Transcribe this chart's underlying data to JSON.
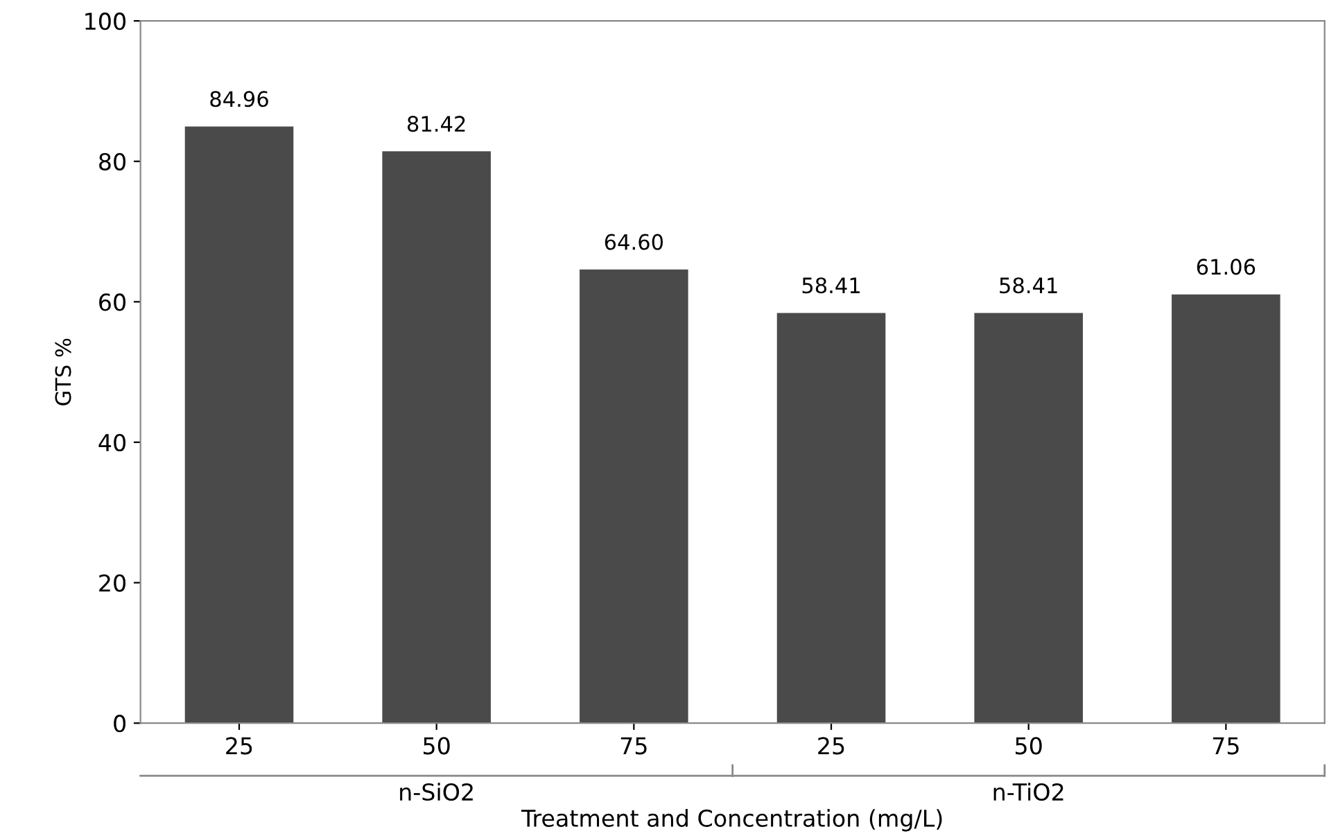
{
  "chart_data": {
    "type": "bar",
    "xlabel": "Treatment and Concentration (mg/L)",
    "ylabel": "GTS %",
    "categories": [
      "25",
      "50",
      "75",
      "25",
      "50",
      "75"
    ],
    "values": [
      84.96,
      81.42,
      64.6,
      58.41,
      58.41,
      61.06
    ],
    "value_labels": [
      "84.96",
      "81.42",
      "64.60",
      "58.41",
      "58.41",
      "61.06"
    ],
    "color": "#4a4a4a",
    "ylim": [
      0,
      100
    ],
    "yticks": [
      0,
      20,
      40,
      60,
      80,
      100
    ],
    "grid": false,
    "annotations": [
      "n-SiO2",
      "n-TiO2"
    ]
  }
}
